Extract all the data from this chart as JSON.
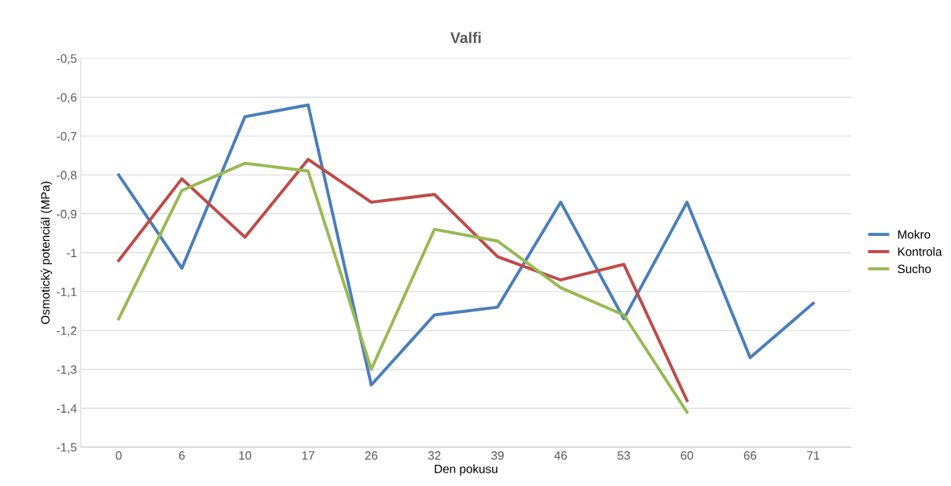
{
  "chart_data": {
    "type": "line",
    "title": "Valfi",
    "xlabel": "Den pokusu",
    "ylabel": "Osmotický potenciál (MPa)",
    "categories": [
      "0",
      "6",
      "10",
      "17",
      "26",
      "32",
      "39",
      "46",
      "53",
      "60",
      "66",
      "71"
    ],
    "series": [
      {
        "name": "Mokro",
        "color": "#4a7ebb",
        "values": [
          -0.8,
          -1.04,
          -0.65,
          -0.62,
          -1.34,
          -1.16,
          -1.14,
          -0.87,
          -1.17,
          -0.87,
          -1.27,
          -1.13
        ]
      },
      {
        "name": "Kontrola",
        "color": "#be4b48",
        "values": [
          -1.02,
          -0.81,
          -0.96,
          -0.76,
          -0.87,
          -0.85,
          -1.01,
          -1.07,
          -1.03,
          -1.38,
          null,
          null
        ]
      },
      {
        "name": "Sucho",
        "color": "#98b954",
        "values": [
          -1.17,
          -0.84,
          -0.77,
          -0.79,
          -1.3,
          -0.94,
          -0.97,
          -1.09,
          -1.16,
          -1.41,
          null,
          null
        ]
      }
    ],
    "ylim": [
      -1.5,
      -0.5
    ],
    "yticks": [
      {
        "value": -1.5,
        "label": "-1,5"
      },
      {
        "value": -1.4,
        "label": "-1,4"
      },
      {
        "value": -1.3,
        "label": "-1,3"
      },
      {
        "value": -1.2,
        "label": "-1,2"
      },
      {
        "value": -1.1,
        "label": "-1,1"
      },
      {
        "value": -1.0,
        "label": "-1"
      },
      {
        "value": -0.9,
        "label": "-0,9"
      },
      {
        "value": -0.8,
        "label": "-0,8"
      },
      {
        "value": -0.7,
        "label": "-0,7"
      },
      {
        "value": -0.6,
        "label": "-0,6"
      },
      {
        "value": -0.5,
        "label": "-0,5"
      }
    ],
    "grid": "y",
    "legend": "right",
    "marker": "none",
    "line_style": "solid"
  }
}
